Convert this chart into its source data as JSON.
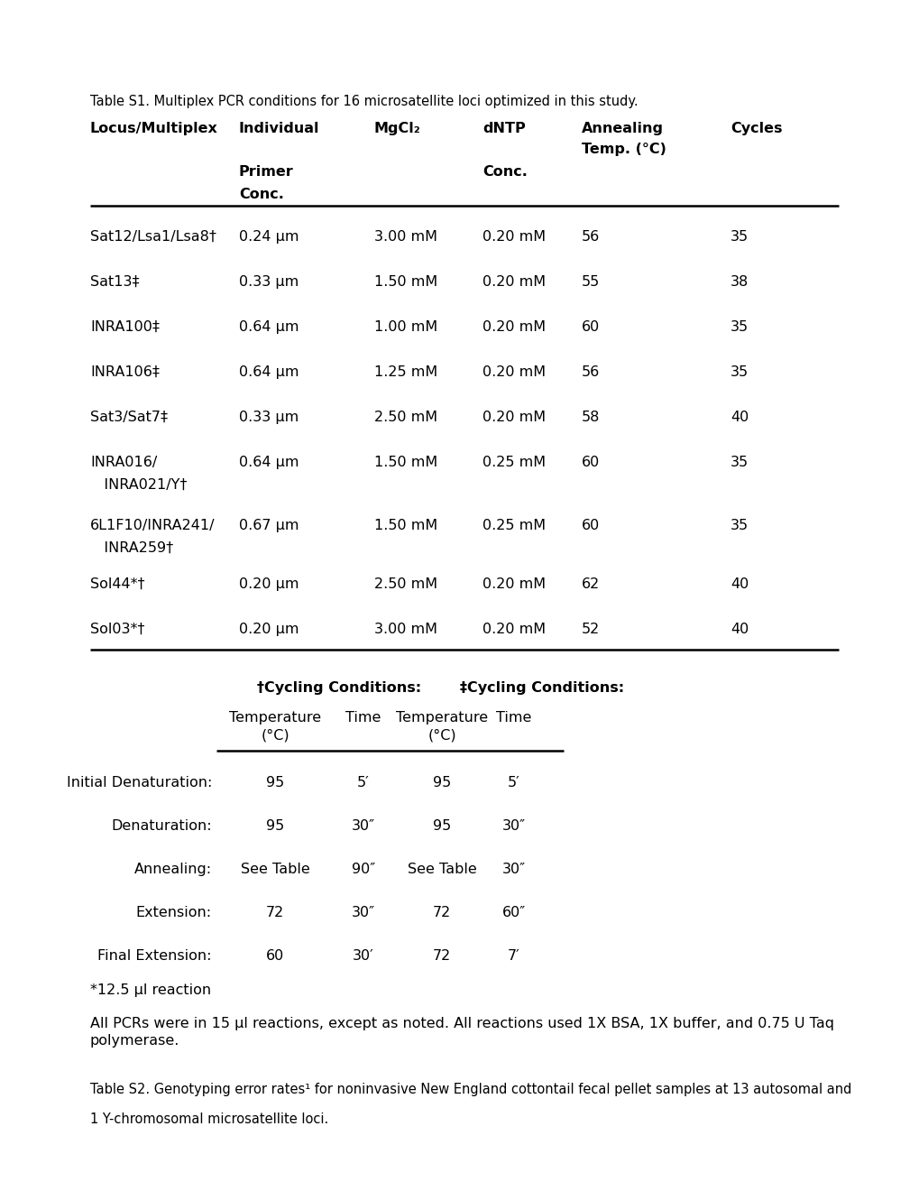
{
  "bg_color": "#ffffff",
  "title_caption": "Table S1. Multiplex PCR conditions for 16 microsatellite loci optimized in this study.",
  "table1_rows": [
    [
      "Sat12/Lsa1/Lsa8†",
      "0.24 μm",
      "3.00 mM",
      "0.20 mM",
      "56",
      "35",
      false
    ],
    [
      "Sat13‡",
      "0.33 μm",
      "1.50 mM",
      "0.20 mM",
      "55",
      "38",
      false
    ],
    [
      "INRA100‡",
      "0.64 μm",
      "1.00 mM",
      "0.20 mM",
      "60",
      "35",
      false
    ],
    [
      "INRA106‡",
      "0.64 μm",
      "1.25 mM",
      "0.20 mM",
      "56",
      "35",
      false
    ],
    [
      "Sat3/Sat7‡",
      "0.33 μm",
      "2.50 mM",
      "0.20 mM",
      "58",
      "40",
      false
    ],
    [
      "INRA016/",
      "0.64 μm",
      "1.50 mM",
      "0.25 mM",
      "60",
      "35",
      true
    ],
    [
      "6L1F10/INRA241/",
      "0.67 μm",
      "1.50 mM",
      "0.25 mM",
      "60",
      "35",
      true
    ],
    [
      "Sol44*†",
      "0.20 μm",
      "2.50 mM",
      "0.20 mM",
      "62",
      "40",
      false
    ],
    [
      "Sol03*†",
      "0.20 μm",
      "3.00 mM",
      "0.20 mM",
      "52",
      "40",
      false
    ]
  ],
  "table1_row2_labels": [
    "",
    "",
    "",
    "",
    "",
    "",
    "INRA021/Y†",
    "INRA259†",
    "",
    ""
  ],
  "cycling_rows": [
    [
      "Initial Denaturation:",
      "95",
      "5′",
      "95",
      "5′"
    ],
    [
      "Denaturation:",
      "95",
      "30″",
      "95",
      "30″"
    ],
    [
      "Annealing:",
      "See Table",
      "90″",
      "See Table",
      "30″"
    ],
    [
      "Extension:",
      "72",
      "30″",
      "72",
      "60″"
    ],
    [
      "Final Extension:",
      "60",
      "30′",
      "72",
      "7′"
    ]
  ],
  "footnote_star": "*12.5 μl reaction",
  "footnote_pcr": "All PCRs were in 15 μl reactions, except as noted. All reactions used 1X BSA, 1X buffer, and 0.75 U Taq\npolymerase.",
  "footnote_table_s2_line1": "Table S2. Genotyping error rates¹ for noninvasive New England cottontail fecal pellet samples at 13 autosomal and",
  "footnote_table_s2_line2": "1 Y-chromosomal microsatellite loci."
}
